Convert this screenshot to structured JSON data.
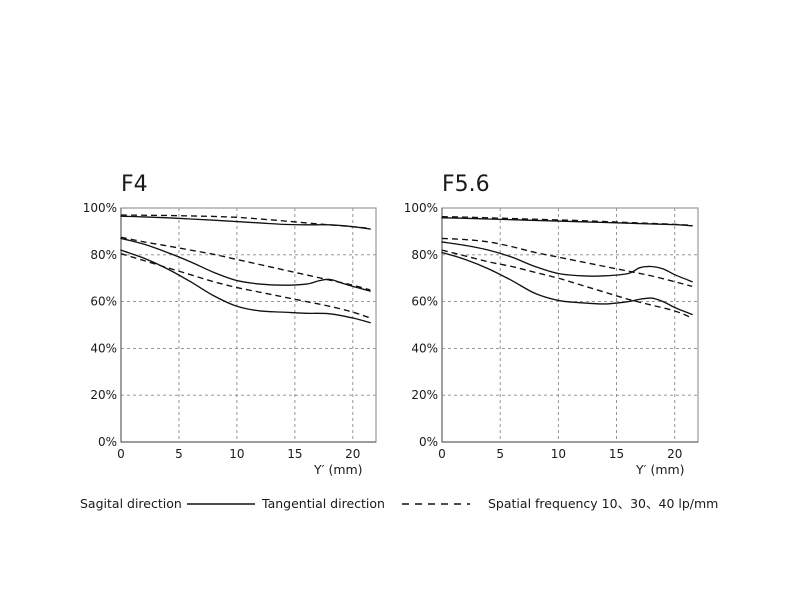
{
  "chart_data": [
    {
      "type": "line",
      "title": "F4",
      "xlabel": "Y′ (mm)",
      "ylabel": "",
      "xlim": [
        0,
        22
      ],
      "ylim": [
        0,
        100
      ],
      "x_ticks": [
        0,
        5,
        10,
        15,
        20
      ],
      "y_ticks": [
        0,
        20,
        40,
        60,
        80,
        100
      ],
      "x_tick_labels": [
        "0",
        "5",
        "10",
        "15",
        "20"
      ],
      "y_tick_labels": [
        "0%",
        "20%",
        "40%",
        "60%",
        "80%",
        "100%"
      ],
      "grid": true,
      "series": [
        {
          "style": "solid",
          "x": [
            0,
            2,
            4,
            6,
            8,
            10,
            12,
            14,
            16,
            18,
            20,
            21.5
          ],
          "y": [
            96.5,
            96.2,
            95.8,
            95.3,
            94.8,
            94.2,
            93.6,
            93.0,
            92.8,
            92.8,
            92.0,
            91.0
          ]
        },
        {
          "style": "dashed",
          "x": [
            0,
            2,
            4,
            6,
            8,
            10,
            12,
            14,
            16,
            18,
            20,
            21.5
          ],
          "y": [
            97.0,
            96.9,
            96.8,
            96.6,
            96.4,
            96.0,
            95.3,
            94.5,
            93.6,
            92.8,
            92.0,
            91.3
          ]
        },
        {
          "style": "solid",
          "x": [
            0,
            2,
            4,
            6,
            8,
            10,
            12,
            14,
            16,
            17,
            18,
            19,
            20,
            21.5
          ],
          "y": [
            87.0,
            84.5,
            81.0,
            77.0,
            72.5,
            69.0,
            67.5,
            67.0,
            67.5,
            68.8,
            69.5,
            68.0,
            66.5,
            64.5
          ]
        },
        {
          "style": "dashed",
          "x": [
            0,
            2,
            4,
            6,
            8,
            10,
            12,
            14,
            16,
            18,
            20,
            21.5
          ],
          "y": [
            87.5,
            85.5,
            83.8,
            82.0,
            80.2,
            78.0,
            75.8,
            73.6,
            71.4,
            69.2,
            67.0,
            65.0
          ]
        },
        {
          "style": "solid",
          "x": [
            0,
            2,
            4,
            6,
            8,
            10,
            12,
            14,
            16,
            18,
            20,
            21.5
          ],
          "y": [
            82.0,
            78.5,
            74.0,
            68.5,
            62.5,
            58.0,
            56.0,
            55.5,
            55.0,
            54.8,
            53.0,
            51.0
          ]
        },
        {
          "style": "dashed",
          "x": [
            0,
            2,
            4,
            6,
            8,
            10,
            12,
            14,
            16,
            18,
            20,
            21.5
          ],
          "y": [
            80.5,
            77.5,
            74.5,
            71.5,
            68.5,
            66.0,
            64.0,
            62.0,
            60.0,
            58.0,
            55.5,
            53.0
          ]
        }
      ]
    },
    {
      "type": "line",
      "title": "F5.6",
      "xlabel": "Y′ (mm)",
      "ylabel": "",
      "xlim": [
        0,
        22
      ],
      "ylim": [
        0,
        100
      ],
      "x_ticks": [
        0,
        5,
        10,
        15,
        20
      ],
      "y_ticks": [
        0,
        20,
        40,
        60,
        80,
        100
      ],
      "x_tick_labels": [
        "0",
        "5",
        "10",
        "15",
        "20"
      ],
      "y_tick_labels": [
        "0%",
        "20%",
        "40%",
        "60%",
        "80%",
        "100%"
      ],
      "grid": true,
      "series": [
        {
          "style": "solid",
          "x": [
            0,
            2,
            4,
            6,
            8,
            10,
            12,
            14,
            16,
            18,
            20,
            21.5
          ],
          "y": [
            95.8,
            95.6,
            95.3,
            95.0,
            94.7,
            94.4,
            94.1,
            93.8,
            93.5,
            93.2,
            92.9,
            92.4
          ]
        },
        {
          "style": "dashed",
          "x": [
            0,
            2,
            4,
            6,
            8,
            10,
            12,
            14,
            16,
            18,
            20,
            21.5
          ],
          "y": [
            96.3,
            96.1,
            95.8,
            95.5,
            95.2,
            94.9,
            94.6,
            94.2,
            93.8,
            93.4,
            93.0,
            92.6
          ]
        },
        {
          "style": "solid",
          "x": [
            0,
            2,
            4,
            6,
            8,
            10,
            12,
            14,
            16,
            17,
            18,
            19,
            20,
            21.5
          ],
          "y": [
            85.5,
            84.0,
            82.0,
            79.0,
            75.0,
            72.0,
            71.0,
            71.0,
            72.0,
            74.5,
            75.0,
            74.0,
            71.5,
            68.5
          ]
        },
        {
          "style": "dashed",
          "x": [
            0,
            2,
            4,
            6,
            8,
            10,
            12,
            14,
            16,
            18,
            20,
            21.5
          ],
          "y": [
            87.0,
            86.5,
            85.5,
            83.5,
            81.0,
            79.0,
            77.0,
            75.0,
            73.0,
            71.0,
            68.5,
            66.5
          ]
        },
        {
          "style": "solid",
          "x": [
            0,
            2,
            4,
            6,
            8,
            10,
            12,
            14,
            16,
            17,
            18,
            19,
            20,
            21.5
          ],
          "y": [
            81.0,
            78.0,
            74.0,
            69.0,
            63.5,
            60.5,
            59.5,
            59.0,
            60.0,
            61.0,
            61.5,
            60.0,
            57.5,
            54.5
          ]
        },
        {
          "style": "dashed",
          "x": [
            0,
            2,
            4,
            6,
            8,
            10,
            12,
            14,
            16,
            18,
            20,
            21.5
          ],
          "y": [
            82.0,
            79.5,
            77.0,
            75.0,
            72.5,
            70.0,
            67.0,
            64.0,
            61.0,
            58.5,
            56.0,
            53.0
          ]
        }
      ]
    }
  ],
  "legend": {
    "sagital_label": "Sagital direction",
    "tangential_label": "Tangential direction",
    "spatial_label": "Spatial frequency 10、30、40 lp/mm"
  }
}
